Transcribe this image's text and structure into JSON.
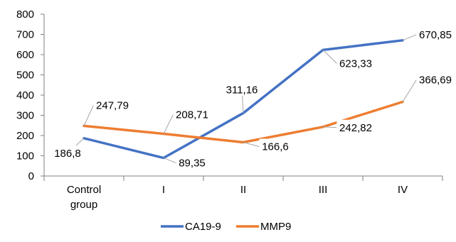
{
  "chart_data": {
    "type": "line",
    "categories": [
      "Control group",
      "I",
      "II",
      "III",
      "IV"
    ],
    "series": [
      {
        "name": "CA19-9",
        "color": "#4472C4",
        "values": [
          186.8,
          89.35,
          311.16,
          623.33,
          670.85
        ],
        "labels": [
          "186,8",
          "89,35",
          "311,16",
          "623,33",
          "670,85"
        ]
      },
      {
        "name": "MMP9",
        "color": "#ED7D31",
        "values": [
          247.79,
          208.71,
          166.6,
          242.82,
          366.69
        ],
        "labels": [
          "247,79",
          "208,71",
          "166,6",
          "242,82",
          "366,69"
        ]
      }
    ],
    "ylim": [
      0,
      800
    ],
    "yticks": [
      0,
      100,
      200,
      300,
      400,
      500,
      600,
      700,
      800
    ],
    "ytick_labels": [
      "0",
      "100",
      "200",
      "300",
      "400",
      "500",
      "600",
      "700",
      "800"
    ],
    "grid": false,
    "legend": "bottom",
    "title": "",
    "xlabel": "",
    "ylabel": ""
  }
}
